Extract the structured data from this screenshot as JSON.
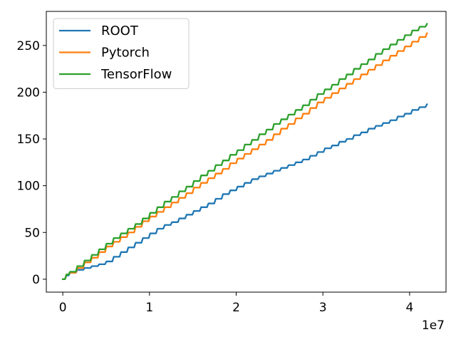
{
  "chart_data": {
    "type": "line",
    "title": "",
    "xlabel": "",
    "ylabel": "",
    "x_offset_label": "1e7",
    "xlim": [
      -1900000,
      44200000
    ],
    "ylim": [
      -13.8,
      286.4
    ],
    "xticks": [
      0,
      10000000,
      20000000,
      30000000,
      40000000
    ],
    "xtick_labels": [
      "0",
      "1",
      "2",
      "3",
      "4"
    ],
    "yticks": [
      0,
      50,
      100,
      150,
      200,
      250
    ],
    "ytick_labels": [
      "0",
      "50",
      "100",
      "150",
      "200",
      "250"
    ],
    "grid": false,
    "legend_position": "top-left",
    "step_width": 840000,
    "series": [
      {
        "name": "ROOT",
        "color": "#1f77b4",
        "x": [
          0,
          420000,
          840000,
          1680000,
          2520000,
          3360000,
          4200000,
          5040000,
          5880000,
          6720000,
          7560000,
          8400000,
          9240000,
          10080000,
          10920000,
          11760000,
          12600000,
          13440000,
          14280000,
          15120000,
          15960000,
          16800000,
          17640000,
          18480000,
          19320000,
          20160000,
          21000000,
          21840000,
          22680000,
          23520000,
          24360000,
          25200000,
          26040000,
          26880000,
          27720000,
          28560000,
          29400000,
          30240000,
          31080000,
          31920000,
          32760000,
          33600000,
          34440000,
          35280000,
          36120000,
          36960000,
          37800000,
          38640000,
          39480000,
          40320000,
          41160000,
          42000000
        ],
        "values": [
          0,
          4,
          7,
          10,
          12,
          14,
          16,
          19,
          24,
          29,
          34,
          39,
          44,
          49,
          54,
          58,
          61,
          65,
          69,
          73,
          77,
          81,
          86,
          91,
          95,
          99,
          103,
          107,
          110,
          113,
          116,
          119,
          122,
          125,
          128,
          132,
          136,
          140,
          143,
          147,
          150,
          154,
          157,
          161,
          164,
          167,
          170,
          174,
          177,
          181,
          184,
          187
        ]
      },
      {
        "name": "Pytorch",
        "color": "#ff7f0e",
        "x": [
          0,
          420000,
          840000,
          1680000,
          2520000,
          3360000,
          4200000,
          5040000,
          5880000,
          6720000,
          7560000,
          8400000,
          9240000,
          10080000,
          10920000,
          11760000,
          12600000,
          13440000,
          14280000,
          15120000,
          15960000,
          16800000,
          17640000,
          18480000,
          19320000,
          20160000,
          21000000,
          21840000,
          22680000,
          23520000,
          24360000,
          25200000,
          26040000,
          26880000,
          27720000,
          28560000,
          29400000,
          30240000,
          31080000,
          31920000,
          32760000,
          33600000,
          34440000,
          35280000,
          36120000,
          36960000,
          37800000,
          38640000,
          39480000,
          40320000,
          41160000,
          42000000
        ],
        "values": [
          0,
          5,
          7,
          12,
          18,
          23,
          29,
          35,
          40,
          45,
          50,
          56,
          62,
          67,
          72,
          77,
          82,
          87,
          92,
          98,
          103,
          108,
          113,
          118,
          124,
          129,
          134,
          139,
          144,
          149,
          155,
          161,
          166,
          172,
          177,
          183,
          189,
          194,
          199,
          204,
          209,
          214,
          219,
          224,
          229,
          234,
          239,
          244,
          249,
          254,
          259,
          263
        ]
      },
      {
        "name": "TensorFlow",
        "color": "#2ca02c",
        "x": [
          0,
          420000,
          840000,
          1680000,
          2520000,
          3360000,
          4200000,
          5040000,
          5880000,
          6720000,
          7560000,
          8400000,
          9240000,
          10080000,
          10920000,
          11760000,
          12600000,
          13440000,
          14280000,
          15120000,
          15960000,
          16800000,
          17640000,
          18480000,
          19320000,
          20160000,
          21000000,
          21840000,
          22680000,
          23520000,
          24360000,
          25200000,
          26040000,
          26880000,
          27720000,
          28560000,
          29400000,
          30240000,
          31080000,
          31920000,
          32760000,
          33600000,
          34440000,
          35280000,
          36120000,
          36960000,
          37800000,
          38640000,
          39480000,
          40320000,
          41160000,
          42000000
        ],
        "values": [
          0,
          5,
          8,
          14,
          20,
          26,
          32,
          38,
          44,
          49,
          54,
          59,
          65,
          71,
          77,
          83,
          88,
          94,
          99,
          105,
          111,
          116,
          122,
          127,
          133,
          138,
          144,
          149,
          155,
          160,
          166,
          171,
          176,
          181,
          186,
          192,
          198,
          203,
          208,
          214,
          219,
          225,
          230,
          235,
          241,
          246,
          251,
          256,
          261,
          266,
          270,
          273
        ]
      }
    ]
  }
}
